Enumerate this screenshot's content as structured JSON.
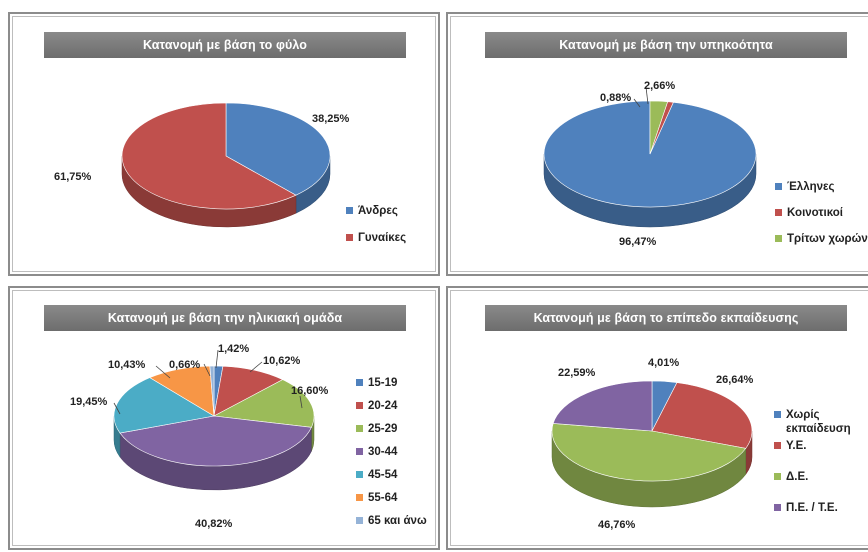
{
  "chart_data": [
    {
      "type": "pie",
      "title": "Κατανομή με βάση το φύλο",
      "slices": [
        {
          "label": "Άνδρες",
          "value": 38.25,
          "text": "38,25%",
          "color": "#4f81bd"
        },
        {
          "label": "Γυναίκες",
          "value": 61.75,
          "text": "61,75%",
          "color": "#c0504d"
        }
      ],
      "legend": "right"
    },
    {
      "type": "pie",
      "title": "Κατανομή με βάση την υπηκοότητα",
      "slices": [
        {
          "label": "Έλληνες",
          "value": 96.47,
          "text": "96,47%",
          "color": "#4f81bd"
        },
        {
          "label": "Κοινοτικοί",
          "value": 0.88,
          "text": "0,88%",
          "color": "#c0504d"
        },
        {
          "label": "Τρίτων χωρών",
          "value": 2.66,
          "text": "2,66%",
          "color": "#9bbb59"
        }
      ],
      "legend": "right"
    },
    {
      "type": "pie",
      "title": "Κατανομή με βάση την ηλικιακή ομάδα",
      "slices": [
        {
          "label": "15-19",
          "value": 1.42,
          "text": "1,42%",
          "color": "#4f81bd"
        },
        {
          "label": "20-24",
          "value": 10.62,
          "text": "10,62%",
          "color": "#c0504d"
        },
        {
          "label": "25-29",
          "value": 16.6,
          "text": "16,60%",
          "color": "#9bbb59"
        },
        {
          "label": "30-44",
          "value": 40.82,
          "text": "40,82%",
          "color": "#8064a2"
        },
        {
          "label": "45-54",
          "value": 19.45,
          "text": "19,45%",
          "color": "#4bacc6"
        },
        {
          "label": "55-64",
          "value": 10.43,
          "text": "10,43%",
          "color": "#f79646"
        },
        {
          "label": "65 και άνω",
          "value": 0.66,
          "text": "0,66%",
          "color": "#95b3d7"
        }
      ],
      "legend": "right"
    },
    {
      "type": "pie",
      "title": "Κατανομή με βάση το επίπεδο εκπαίδευσης",
      "slices": [
        {
          "label": "Χωρίς εκπαίδευση",
          "value": 4.01,
          "text": "4,01%",
          "color": "#4f81bd"
        },
        {
          "label": "Υ.Ε.",
          "value": 26.64,
          "text": "26,64%",
          "color": "#c0504d"
        },
        {
          "label": "Δ.Ε.",
          "value": 46.76,
          "text": "46,76%",
          "color": "#9bbb59"
        },
        {
          "label": "Π.Ε. / Τ.Ε.",
          "value": 22.59,
          "text": "22,59%",
          "color": "#8064a2"
        }
      ],
      "legend": "right"
    }
  ]
}
